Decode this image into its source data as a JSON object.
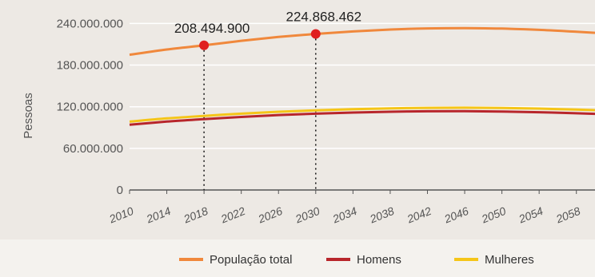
{
  "colors": {
    "plot_bg": "#ede9e4",
    "legend_bg": "#f4f2ee",
    "grid": "#ffffff",
    "axis": "#555555",
    "marker": "#e02020"
  },
  "chart_data": {
    "type": "line",
    "ylabel": "Pessoas",
    "xlabel": "",
    "x_ticks": [
      "2010",
      "2014",
      "2018",
      "2022",
      "2026",
      "2030",
      "2034",
      "2038",
      "2042",
      "2046",
      "2050",
      "2054",
      "2058"
    ],
    "y_ticks": [
      "0",
      "60.000.000",
      "120.000.000",
      "180.000.000",
      "240.000.000"
    ],
    "y_tick_values": [
      0,
      60000000,
      120000000,
      180000000,
      240000000
    ],
    "xlim": [
      2010,
      2060
    ],
    "ylim": [
      0,
      260000000
    ],
    "grid": true,
    "legend_position": "bottom",
    "series": [
      {
        "name": "População total",
        "color": "#f0883c",
        "points": [
          [
            2010,
            194900000
          ],
          [
            2014,
            202500000
          ],
          [
            2018,
            208494900
          ],
          [
            2022,
            215000000
          ],
          [
            2026,
            220500000
          ],
          [
            2030,
            224868462
          ],
          [
            2034,
            228500000
          ],
          [
            2038,
            231200000
          ],
          [
            2042,
            232800000
          ],
          [
            2046,
            233300000
          ],
          [
            2050,
            232600000
          ],
          [
            2054,
            230800000
          ],
          [
            2058,
            228000000
          ],
          [
            2060,
            226500000
          ]
        ]
      },
      {
        "name": "Homens",
        "color": "#b8262b",
        "points": [
          [
            2010,
            94000000
          ],
          [
            2014,
            98600000
          ],
          [
            2018,
            102000000
          ],
          [
            2022,
            105300000
          ],
          [
            2026,
            108000000
          ],
          [
            2030,
            110000000
          ],
          [
            2034,
            111600000
          ],
          [
            2038,
            112800000
          ],
          [
            2042,
            113400000
          ],
          [
            2046,
            113500000
          ],
          [
            2050,
            113100000
          ],
          [
            2054,
            112100000
          ],
          [
            2058,
            110500000
          ],
          [
            2060,
            109700000
          ]
        ]
      },
      {
        "name": "Mulheres",
        "color": "#f5c518",
        "points": [
          [
            2010,
            98500000
          ],
          [
            2014,
            103200000
          ],
          [
            2018,
            106800000
          ],
          [
            2022,
            110000000
          ],
          [
            2026,
            112700000
          ],
          [
            2030,
            114800000
          ],
          [
            2034,
            116400000
          ],
          [
            2038,
            117700000
          ],
          [
            2042,
            118400000
          ],
          [
            2046,
            118600000
          ],
          [
            2050,
            118200000
          ],
          [
            2054,
            117300000
          ],
          [
            2058,
            115800000
          ],
          [
            2060,
            115000000
          ]
        ]
      }
    ],
    "annotations": [
      {
        "x": 2018,
        "y": 208494900,
        "label": "208.494.900"
      },
      {
        "x": 2030,
        "y": 224868462,
        "label": "224.868.462"
      }
    ]
  }
}
